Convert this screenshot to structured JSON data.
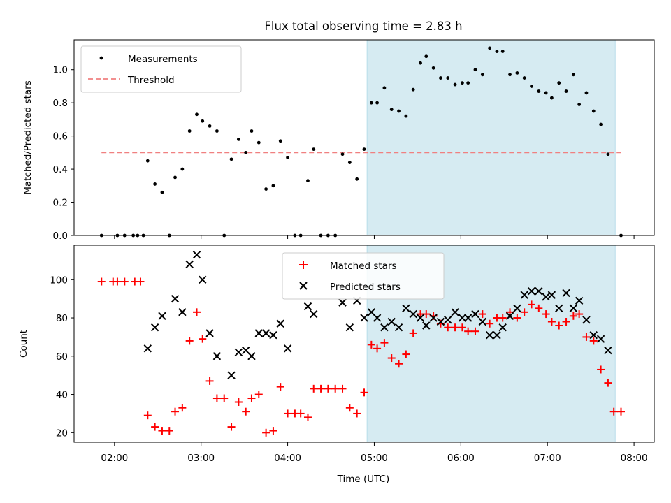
{
  "chart_data": [
    {
      "type": "scatter",
      "title": "Flux total observing time = 2.83 h",
      "ylabel": "Matched/Predicted stars",
      "xlim": [
        "01:32",
        "08:14"
      ],
      "ylim": [
        0,
        1.18
      ],
      "yticks": [
        "0.0",
        "0.2",
        "0.4",
        "0.6",
        "0.8",
        "1.0"
      ],
      "legend_position": "top-left",
      "shaded_interval": {
        "start": "04:55",
        "end": "07:47",
        "color": "#add8e6"
      },
      "series": [
        {
          "name": "Measurements",
          "marker": "dot",
          "color": "#000000",
          "points": [
            [
              "01:51",
              0.0
            ],
            [
              "02:02",
              0.0
            ],
            [
              "02:07",
              0.0
            ],
            [
              "02:13",
              0.0
            ],
            [
              "02:16",
              0.0
            ],
            [
              "02:20",
              0.0
            ],
            [
              "02:23",
              0.45
            ],
            [
              "02:28",
              0.31
            ],
            [
              "02:33",
              0.26
            ],
            [
              "02:38",
              0.0
            ],
            [
              "02:42",
              0.35
            ],
            [
              "02:47",
              0.4
            ],
            [
              "02:52",
              0.63
            ],
            [
              "02:57",
              0.73
            ],
            [
              "03:01",
              0.69
            ],
            [
              "03:06",
              0.66
            ],
            [
              "03:11",
              0.63
            ],
            [
              "03:16",
              0.0
            ],
            [
              "03:21",
              0.46
            ],
            [
              "03:26",
              0.58
            ],
            [
              "03:31",
              0.5
            ],
            [
              "03:35",
              0.63
            ],
            [
              "03:40",
              0.56
            ],
            [
              "03:45",
              0.28
            ],
            [
              "03:50",
              0.3
            ],
            [
              "03:55",
              0.57
            ],
            [
              "04:00",
              0.47
            ],
            [
              "04:05",
              0.0
            ],
            [
              "04:09",
              0.0
            ],
            [
              "04:14",
              0.33
            ],
            [
              "04:18",
              0.52
            ],
            [
              "04:23",
              0.0
            ],
            [
              "04:28",
              0.0
            ],
            [
              "04:33",
              0.0
            ],
            [
              "04:38",
              0.49
            ],
            [
              "04:43",
              0.44
            ],
            [
              "04:48",
              0.34
            ],
            [
              "04:53",
              0.52
            ],
            [
              "04:58",
              0.8
            ],
            [
              "05:02",
              0.8
            ],
            [
              "05:07",
              0.89
            ],
            [
              "05:12",
              0.76
            ],
            [
              "05:17",
              0.75
            ],
            [
              "05:22",
              0.72
            ],
            [
              "05:27",
              0.88
            ],
            [
              "05:32",
              1.04
            ],
            [
              "05:36",
              1.08
            ],
            [
              "05:41",
              1.01
            ],
            [
              "05:46",
              0.95
            ],
            [
              "05:51",
              0.95
            ],
            [
              "05:56",
              0.91
            ],
            [
              "06:01",
              0.92
            ],
            [
              "06:05",
              0.92
            ],
            [
              "06:10",
              1.0
            ],
            [
              "06:15",
              0.97
            ],
            [
              "06:20",
              1.13
            ],
            [
              "06:25",
              1.11
            ],
            [
              "06:29",
              1.11
            ],
            [
              "06:34",
              0.97
            ],
            [
              "06:39",
              0.98
            ],
            [
              "06:44",
              0.95
            ],
            [
              "06:49",
              0.9
            ],
            [
              "06:54",
              0.87
            ],
            [
              "06:59",
              0.86
            ],
            [
              "07:03",
              0.83
            ],
            [
              "07:08",
              0.92
            ],
            [
              "07:13",
              0.87
            ],
            [
              "07:18",
              0.97
            ],
            [
              "07:22",
              0.79
            ],
            [
              "07:27",
              0.86
            ],
            [
              "07:32",
              0.75
            ],
            [
              "07:37",
              0.67
            ],
            [
              "07:42",
              0.49
            ],
            [
              "07:51",
              0.0
            ]
          ]
        },
        {
          "name": "Threshold",
          "style": "dashed",
          "color": "#f08080",
          "x": [
            "01:51",
            "07:51"
          ],
          "y": [
            0.5,
            0.5
          ]
        }
      ]
    },
    {
      "type": "scatter",
      "xlabel": "Time (UTC)",
      "ylabel": "Count",
      "xlim": [
        "01:32",
        "08:14"
      ],
      "ylim": [
        15,
        118
      ],
      "xticks": [
        "02:00",
        "03:00",
        "04:00",
        "05:00",
        "06:00",
        "07:00",
        "08:00"
      ],
      "yticks": [
        "20",
        "40",
        "60",
        "80",
        "100"
      ],
      "legend_position": "top-center",
      "shaded_interval": {
        "start": "04:55",
        "end": "07:47",
        "color": "#add8e6"
      },
      "series": [
        {
          "name": "Matched stars",
          "marker": "plus",
          "color": "#ff0000",
          "points": [
            [
              "01:51",
              99
            ],
            [
              "01:59",
              99
            ],
            [
              "02:02",
              99
            ],
            [
              "02:07",
              99
            ],
            [
              "02:14",
              99
            ],
            [
              "02:18",
              99
            ],
            [
              "02:23",
              29
            ],
            [
              "02:28",
              23
            ],
            [
              "02:33",
              21
            ],
            [
              "02:38",
              21
            ],
            [
              "02:42",
              31
            ],
            [
              "02:47",
              33
            ],
            [
              "02:52",
              68
            ],
            [
              "02:57",
              83
            ],
            [
              "03:01",
              69
            ],
            [
              "03:06",
              47
            ],
            [
              "03:11",
              38
            ],
            [
              "03:16",
              38
            ],
            [
              "03:21",
              23
            ],
            [
              "03:26",
              36
            ],
            [
              "03:31",
              31
            ],
            [
              "03:35",
              38
            ],
            [
              "03:40",
              40
            ],
            [
              "03:45",
              20
            ],
            [
              "03:50",
              21
            ],
            [
              "03:55",
              44
            ],
            [
              "04:00",
              30
            ],
            [
              "04:05",
              30
            ],
            [
              "04:09",
              30
            ],
            [
              "04:14",
              28
            ],
            [
              "04:18",
              43
            ],
            [
              "04:23",
              43
            ],
            [
              "04:28",
              43
            ],
            [
              "04:33",
              43
            ],
            [
              "04:38",
              43
            ],
            [
              "04:43",
              33
            ],
            [
              "04:48",
              30
            ],
            [
              "04:53",
              41
            ],
            [
              "04:58",
              66
            ],
            [
              "05:02",
              64
            ],
            [
              "05:07",
              67
            ],
            [
              "05:12",
              59
            ],
            [
              "05:17",
              56
            ],
            [
              "05:22",
              61
            ],
            [
              "05:27",
              72
            ],
            [
              "05:32",
              82
            ],
            [
              "05:36",
              82
            ],
            [
              "05:41",
              81
            ],
            [
              "05:46",
              77
            ],
            [
              "05:51",
              75
            ],
            [
              "05:56",
              75
            ],
            [
              "06:01",
              75
            ],
            [
              "06:05",
              73
            ],
            [
              "06:10",
              73
            ],
            [
              "06:15",
              82
            ],
            [
              "06:20",
              77
            ],
            [
              "06:25",
              80
            ],
            [
              "06:29",
              80
            ],
            [
              "06:34",
              83
            ],
            [
              "06:39",
              80
            ],
            [
              "06:44",
              83
            ],
            [
              "06:49",
              87
            ],
            [
              "06:54",
              85
            ],
            [
              "06:59",
              82
            ],
            [
              "07:03",
              78
            ],
            [
              "07:08",
              76
            ],
            [
              "07:13",
              78
            ],
            [
              "07:18",
              81
            ],
            [
              "07:22",
              82
            ],
            [
              "07:27",
              70
            ],
            [
              "07:32",
              68
            ],
            [
              "07:37",
              53
            ],
            [
              "07:42",
              46
            ],
            [
              "07:46",
              31
            ],
            [
              "07:51",
              31
            ]
          ]
        },
        {
          "name": "Predicted stars",
          "marker": "x",
          "color": "#000000",
          "points": [
            [
              "02:23",
              64
            ],
            [
              "02:28",
              75
            ],
            [
              "02:33",
              81
            ],
            [
              "02:42",
              90
            ],
            [
              "02:47",
              83
            ],
            [
              "02:52",
              108
            ],
            [
              "02:57",
              113
            ],
            [
              "03:01",
              100
            ],
            [
              "03:06",
              72
            ],
            [
              "03:11",
              60
            ],
            [
              "03:21",
              50
            ],
            [
              "03:26",
              62
            ],
            [
              "03:31",
              63
            ],
            [
              "03:35",
              60
            ],
            [
              "03:40",
              72
            ],
            [
              "03:45",
              72
            ],
            [
              "03:50",
              71
            ],
            [
              "03:55",
              77
            ],
            [
              "04:00",
              64
            ],
            [
              "04:14",
              86
            ],
            [
              "04:18",
              82
            ],
            [
              "04:38",
              88
            ],
            [
              "04:43",
              75
            ],
            [
              "04:48",
              89
            ],
            [
              "04:53",
              80
            ],
            [
              "04:58",
              83
            ],
            [
              "05:02",
              80
            ],
            [
              "05:07",
              75
            ],
            [
              "05:12",
              78
            ],
            [
              "05:17",
              75
            ],
            [
              "05:22",
              85
            ],
            [
              "05:27",
              82
            ],
            [
              "05:32",
              80
            ],
            [
              "05:36",
              76
            ],
            [
              "05:41",
              80
            ],
            [
              "05:46",
              78
            ],
            [
              "05:51",
              79
            ],
            [
              "05:56",
              83
            ],
            [
              "06:01",
              80
            ],
            [
              "06:05",
              80
            ],
            [
              "06:10",
              82
            ],
            [
              "06:15",
              78
            ],
            [
              "06:20",
              71
            ],
            [
              "06:25",
              71
            ],
            [
              "06:29",
              75
            ],
            [
              "06:34",
              81
            ],
            [
              "06:39",
              85
            ],
            [
              "06:44",
              92
            ],
            [
              "06:49",
              94
            ],
            [
              "06:54",
              94
            ],
            [
              "06:59",
              91
            ],
            [
              "07:03",
              92
            ],
            [
              "07:08",
              85
            ],
            [
              "07:13",
              93
            ],
            [
              "07:18",
              85
            ],
            [
              "07:22",
              89
            ],
            [
              "07:27",
              79
            ],
            [
              "07:32",
              71
            ],
            [
              "07:37",
              69
            ],
            [
              "07:42",
              63
            ]
          ]
        }
      ]
    }
  ]
}
